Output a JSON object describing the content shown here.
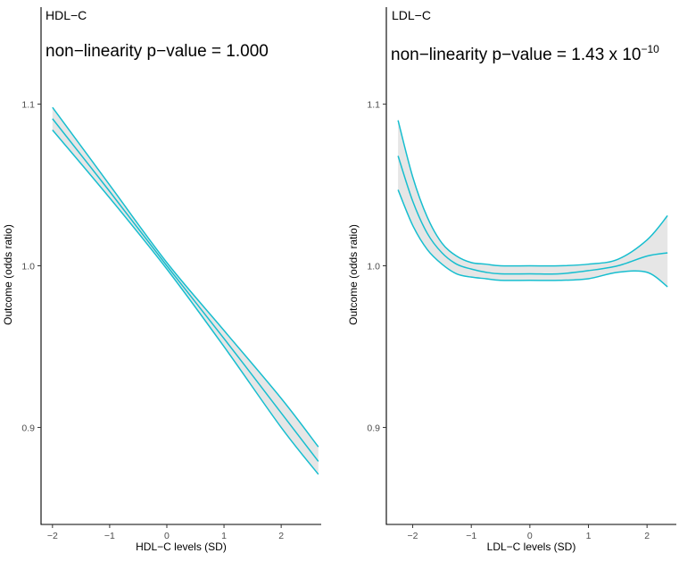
{
  "chart_data": [
    {
      "type": "line",
      "title": "HDL−C",
      "annotation": "non−linearity p−value = 1.000",
      "annotation_exponent": "",
      "xlabel": "HDL−C levels (SD)",
      "ylabel": "Outcome (odds ratio)",
      "xlim": [
        -2.2,
        2.7
      ],
      "ylim": [
        0.84,
        1.16
      ],
      "xticks": [
        -2,
        -1,
        0,
        1,
        2
      ],
      "xtick_labels": [
        "−2",
        "−1",
        "0",
        "1",
        "2"
      ],
      "yticks": [
        0.9,
        1.0,
        1.1
      ],
      "ytick_labels": [
        "0.9",
        "1.0",
        "1.1"
      ],
      "line_color": "#17becf",
      "band_color": "#e6e6e6",
      "series": [
        {
          "name": "estimate",
          "x": [
            -2.0,
            -1.0,
            0.0,
            1.0,
            2.0,
            2.65
          ],
          "values": [
            1.091,
            1.046,
            1.0,
            0.955,
            0.909,
            0.879
          ]
        },
        {
          "name": "upper",
          "x": [
            -2.0,
            -1.0,
            0.0,
            1.0,
            2.0,
            2.65
          ],
          "values": [
            1.098,
            1.05,
            1.002,
            0.96,
            0.918,
            0.888
          ]
        },
        {
          "name": "lower",
          "x": [
            -2.0,
            -1.0,
            0.0,
            1.0,
            2.0,
            2.65
          ],
          "values": [
            1.084,
            1.042,
            0.998,
            0.95,
            0.9,
            0.871
          ]
        }
      ]
    },
    {
      "type": "line",
      "title": "LDL−C",
      "annotation": "non−linearity p−value = 1.43 x 10",
      "annotation_exponent": "−10",
      "xlabel": "LDL−C levels (SD)",
      "ylabel": "Outcome (odds ratio)",
      "xlim": [
        -2.45,
        2.5
      ],
      "ylim": [
        0.84,
        1.16
      ],
      "xticks": [
        -2,
        -1,
        0,
        1,
        2
      ],
      "xtick_labels": [
        "−2",
        "−1",
        "0",
        "1",
        "2"
      ],
      "yticks": [
        0.9,
        1.0,
        1.1
      ],
      "ytick_labels": [
        "0.9",
        "1.0",
        "1.1"
      ],
      "line_color": "#17becf",
      "band_color": "#e6e6e6",
      "series": [
        {
          "name": "estimate",
          "x": [
            -2.25,
            -2.0,
            -1.75,
            -1.5,
            -1.25,
            -1.0,
            -0.75,
            -0.5,
            0.0,
            0.5,
            1.0,
            1.5,
            2.0,
            2.35
          ],
          "values": [
            1.068,
            1.04,
            1.02,
            1.008,
            1.001,
            0.998,
            0.996,
            0.995,
            0.995,
            0.995,
            0.997,
            1.0,
            1.006,
            1.008
          ]
        },
        {
          "name": "upper",
          "x": [
            -2.25,
            -2.0,
            -1.75,
            -1.5,
            -1.25,
            -1.0,
            -0.75,
            -0.5,
            0.0,
            0.5,
            1.0,
            1.5,
            2.0,
            2.35
          ],
          "values": [
            1.09,
            1.055,
            1.03,
            1.014,
            1.006,
            1.002,
            1.001,
            1.0,
            1.0,
            1.0,
            1.001,
            1.004,
            1.016,
            1.031
          ]
        },
        {
          "name": "lower",
          "x": [
            -2.25,
            -2.0,
            -1.75,
            -1.5,
            -1.25,
            -1.0,
            -0.75,
            -0.5,
            0.0,
            0.5,
            1.0,
            1.5,
            2.0,
            2.35
          ],
          "values": [
            1.047,
            1.025,
            1.01,
            1.001,
            0.995,
            0.993,
            0.992,
            0.991,
            0.991,
            0.991,
            0.992,
            0.996,
            0.996,
            0.987
          ]
        }
      ]
    }
  ]
}
